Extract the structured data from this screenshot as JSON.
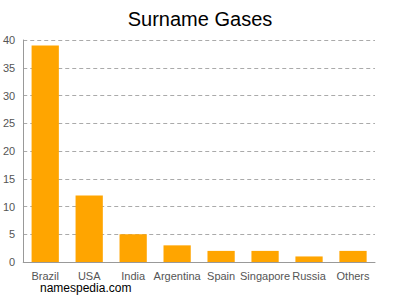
{
  "chart_data": {
    "type": "bar",
    "title": "Surname Gases",
    "categories": [
      "Brazil",
      "USA",
      "India",
      "Argentina",
      "Spain",
      "Singapore",
      "Russia",
      "Others"
    ],
    "values": [
      39,
      12,
      5,
      3,
      2,
      2,
      1,
      2
    ],
    "color": "#ffa500",
    "ylim": [
      0,
      40
    ],
    "yticks": [
      0,
      5,
      10,
      15,
      20,
      25,
      30,
      35,
      40
    ],
    "grid": true,
    "annotation": "namespedia.com"
  }
}
